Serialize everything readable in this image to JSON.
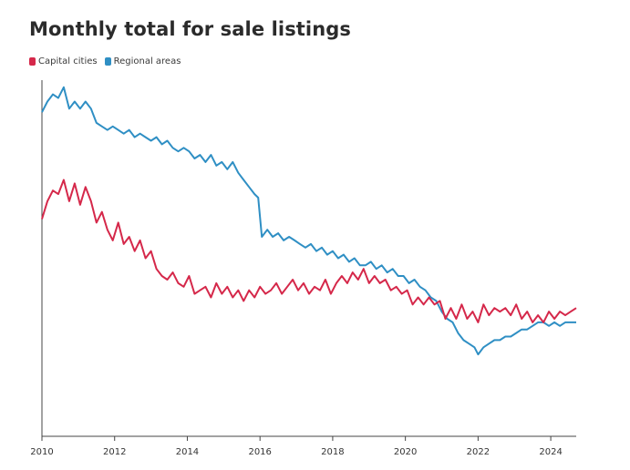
{
  "chart_data": {
    "type": "line",
    "title": "Monthly total for sale listings",
    "xlabel": "",
    "ylabel": "",
    "xlim": [
      2010,
      2024.7
    ],
    "ylim": [
      0,
      100
    ],
    "x_ticks": [
      "2010",
      "2012",
      "2014",
      "2016",
      "2018",
      "2020",
      "2022",
      "2024"
    ],
    "y_tick_labels_shown": false,
    "grid": false,
    "legend_position": "top-left",
    "series": [
      {
        "name": "Capital cities",
        "color": "#d5284a",
        "points": [
          [
            2010.0,
            61
          ],
          [
            2010.15,
            66
          ],
          [
            2010.3,
            69
          ],
          [
            2010.45,
            68
          ],
          [
            2010.6,
            72
          ],
          [
            2010.75,
            66
          ],
          [
            2010.9,
            71
          ],
          [
            2011.05,
            65
          ],
          [
            2011.2,
            70
          ],
          [
            2011.35,
            66
          ],
          [
            2011.5,
            60
          ],
          [
            2011.65,
            63
          ],
          [
            2011.8,
            58
          ],
          [
            2011.95,
            55
          ],
          [
            2012.1,
            60
          ],
          [
            2012.25,
            54
          ],
          [
            2012.4,
            56
          ],
          [
            2012.55,
            52
          ],
          [
            2012.7,
            55
          ],
          [
            2012.85,
            50
          ],
          [
            2013.0,
            52
          ],
          [
            2013.15,
            47
          ],
          [
            2013.3,
            45
          ],
          [
            2013.45,
            44
          ],
          [
            2013.6,
            46
          ],
          [
            2013.75,
            43
          ],
          [
            2013.9,
            42
          ],
          [
            2014.05,
            45
          ],
          [
            2014.2,
            40
          ],
          [
            2014.35,
            41
          ],
          [
            2014.5,
            42
          ],
          [
            2014.65,
            39
          ],
          [
            2014.8,
            43
          ],
          [
            2014.95,
            40
          ],
          [
            2015.1,
            42
          ],
          [
            2015.25,
            39
          ],
          [
            2015.4,
            41
          ],
          [
            2015.55,
            38
          ],
          [
            2015.7,
            41
          ],
          [
            2015.85,
            39
          ],
          [
            2016.0,
            42
          ],
          [
            2016.15,
            40
          ],
          [
            2016.3,
            41
          ],
          [
            2016.45,
            43
          ],
          [
            2016.6,
            40
          ],
          [
            2016.75,
            42
          ],
          [
            2016.9,
            44
          ],
          [
            2017.05,
            41
          ],
          [
            2017.2,
            43
          ],
          [
            2017.35,
            40
          ],
          [
            2017.5,
            42
          ],
          [
            2017.65,
            41
          ],
          [
            2017.8,
            44
          ],
          [
            2017.95,
            40
          ],
          [
            2018.1,
            43
          ],
          [
            2018.25,
            45
          ],
          [
            2018.4,
            43
          ],
          [
            2018.55,
            46
          ],
          [
            2018.7,
            44
          ],
          [
            2018.85,
            47
          ],
          [
            2019.0,
            43
          ],
          [
            2019.15,
            45
          ],
          [
            2019.3,
            43
          ],
          [
            2019.45,
            44
          ],
          [
            2019.6,
            41
          ],
          [
            2019.75,
            42
          ],
          [
            2019.9,
            40
          ],
          [
            2020.05,
            41
          ],
          [
            2020.2,
            37
          ],
          [
            2020.35,
            39
          ],
          [
            2020.5,
            37
          ],
          [
            2020.65,
            39
          ],
          [
            2020.8,
            37
          ],
          [
            2020.95,
            38
          ],
          [
            2021.1,
            33
          ],
          [
            2021.25,
            36
          ],
          [
            2021.4,
            33
          ],
          [
            2021.55,
            37
          ],
          [
            2021.7,
            33
          ],
          [
            2021.85,
            35
          ],
          [
            2022.0,
            32
          ],
          [
            2022.15,
            37
          ],
          [
            2022.3,
            34
          ],
          [
            2022.45,
            36
          ],
          [
            2022.6,
            35
          ],
          [
            2022.75,
            36
          ],
          [
            2022.9,
            34
          ],
          [
            2023.05,
            37
          ],
          [
            2023.2,
            33
          ],
          [
            2023.35,
            35
          ],
          [
            2023.5,
            32
          ],
          [
            2023.65,
            34
          ],
          [
            2023.8,
            32
          ],
          [
            2023.95,
            35
          ],
          [
            2024.1,
            33
          ],
          [
            2024.25,
            35
          ],
          [
            2024.4,
            34
          ],
          [
            2024.55,
            35
          ],
          [
            2024.7,
            36
          ]
        ]
      },
      {
        "name": "Regional areas",
        "color": "#2f8fc4",
        "points": [
          [
            2010.0,
            91
          ],
          [
            2010.15,
            94
          ],
          [
            2010.3,
            96
          ],
          [
            2010.45,
            95
          ],
          [
            2010.6,
            98
          ],
          [
            2010.75,
            92
          ],
          [
            2010.9,
            94
          ],
          [
            2011.05,
            92
          ],
          [
            2011.2,
            94
          ],
          [
            2011.35,
            92
          ],
          [
            2011.5,
            88
          ],
          [
            2011.65,
            87
          ],
          [
            2011.8,
            86
          ],
          [
            2011.95,
            87
          ],
          [
            2012.1,
            86
          ],
          [
            2012.25,
            85
          ],
          [
            2012.4,
            86
          ],
          [
            2012.55,
            84
          ],
          [
            2012.7,
            85
          ],
          [
            2012.85,
            84
          ],
          [
            2013.0,
            83
          ],
          [
            2013.15,
            84
          ],
          [
            2013.3,
            82
          ],
          [
            2013.45,
            83
          ],
          [
            2013.6,
            81
          ],
          [
            2013.75,
            80
          ],
          [
            2013.9,
            81
          ],
          [
            2014.05,
            80
          ],
          [
            2014.2,
            78
          ],
          [
            2014.35,
            79
          ],
          [
            2014.5,
            77
          ],
          [
            2014.65,
            79
          ],
          [
            2014.8,
            76
          ],
          [
            2014.95,
            77
          ],
          [
            2015.1,
            75
          ],
          [
            2015.25,
            77
          ],
          [
            2015.4,
            74
          ],
          [
            2015.55,
            72
          ],
          [
            2015.7,
            70
          ],
          [
            2015.85,
            68
          ],
          [
            2015.95,
            67
          ],
          [
            2016.05,
            56
          ],
          [
            2016.2,
            58
          ],
          [
            2016.35,
            56
          ],
          [
            2016.5,
            57
          ],
          [
            2016.65,
            55
          ],
          [
            2016.8,
            56
          ],
          [
            2016.95,
            55
          ],
          [
            2017.1,
            54
          ],
          [
            2017.25,
            53
          ],
          [
            2017.4,
            54
          ],
          [
            2017.55,
            52
          ],
          [
            2017.7,
            53
          ],
          [
            2017.85,
            51
          ],
          [
            2018.0,
            52
          ],
          [
            2018.15,
            50
          ],
          [
            2018.3,
            51
          ],
          [
            2018.45,
            49
          ],
          [
            2018.6,
            50
          ],
          [
            2018.75,
            48
          ],
          [
            2018.9,
            48
          ],
          [
            2019.05,
            49
          ],
          [
            2019.2,
            47
          ],
          [
            2019.35,
            48
          ],
          [
            2019.5,
            46
          ],
          [
            2019.65,
            47
          ],
          [
            2019.8,
            45
          ],
          [
            2019.95,
            45
          ],
          [
            2020.1,
            43
          ],
          [
            2020.25,
            44
          ],
          [
            2020.4,
            42
          ],
          [
            2020.55,
            41
          ],
          [
            2020.7,
            39
          ],
          [
            2020.85,
            38
          ],
          [
            2021.0,
            35
          ],
          [
            2021.15,
            33
          ],
          [
            2021.3,
            32
          ],
          [
            2021.45,
            29
          ],
          [
            2021.6,
            27
          ],
          [
            2021.75,
            26
          ],
          [
            2021.9,
            25
          ],
          [
            2022.0,
            23
          ],
          [
            2022.15,
            25
          ],
          [
            2022.3,
            26
          ],
          [
            2022.45,
            27
          ],
          [
            2022.6,
            27
          ],
          [
            2022.75,
            28
          ],
          [
            2022.9,
            28
          ],
          [
            2023.05,
            29
          ],
          [
            2023.2,
            30
          ],
          [
            2023.35,
            30
          ],
          [
            2023.5,
            31
          ],
          [
            2023.65,
            32
          ],
          [
            2023.8,
            32
          ],
          [
            2023.95,
            31
          ],
          [
            2024.1,
            32
          ],
          [
            2024.25,
            31
          ],
          [
            2024.4,
            32
          ],
          [
            2024.55,
            32
          ],
          [
            2024.7,
            32
          ]
        ]
      }
    ]
  }
}
